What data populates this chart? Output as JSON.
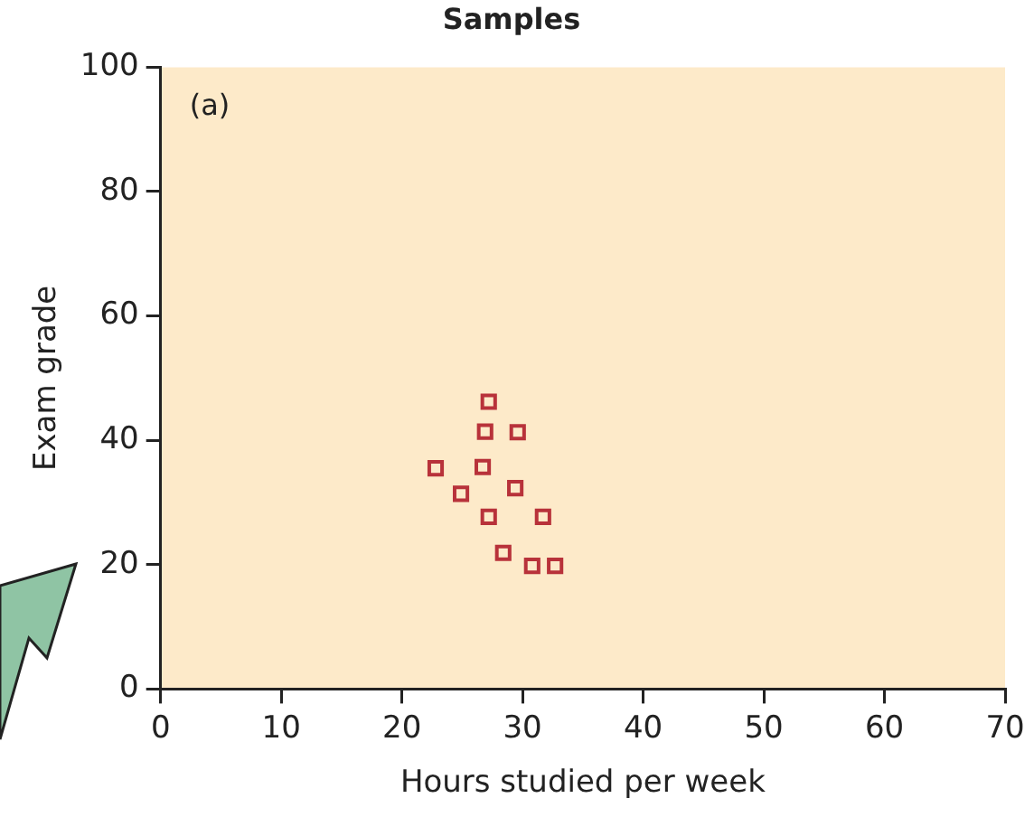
{
  "chart_data": {
    "type": "scatter",
    "title": "Samples",
    "xlabel": "Hours studied per week",
    "ylabel": "Exam grade",
    "annotations": [
      "(a)"
    ],
    "series": [
      {
        "color": "#b8323a",
        "x": [
          27.2,
          26.9,
          29.6,
          22.8,
          26.7,
          24.9,
          29.4,
          27.2,
          31.7,
          28.4,
          30.8,
          32.7
        ],
        "values": [
          46.2,
          41.4,
          41.3,
          35.5,
          35.7,
          31.4,
          32.3,
          27.7,
          27.7,
          21.9,
          19.8,
          19.8
        ]
      }
    ],
    "xlim": [
      0,
      70
    ],
    "xticks": [
      0,
      10,
      20,
      30,
      40,
      50,
      60,
      70
    ],
    "ylim": [
      0,
      100
    ],
    "yticks": [
      0,
      20,
      40,
      60,
      80,
      100
    ],
    "grid": false,
    "legend": false,
    "marker": "square"
  }
}
